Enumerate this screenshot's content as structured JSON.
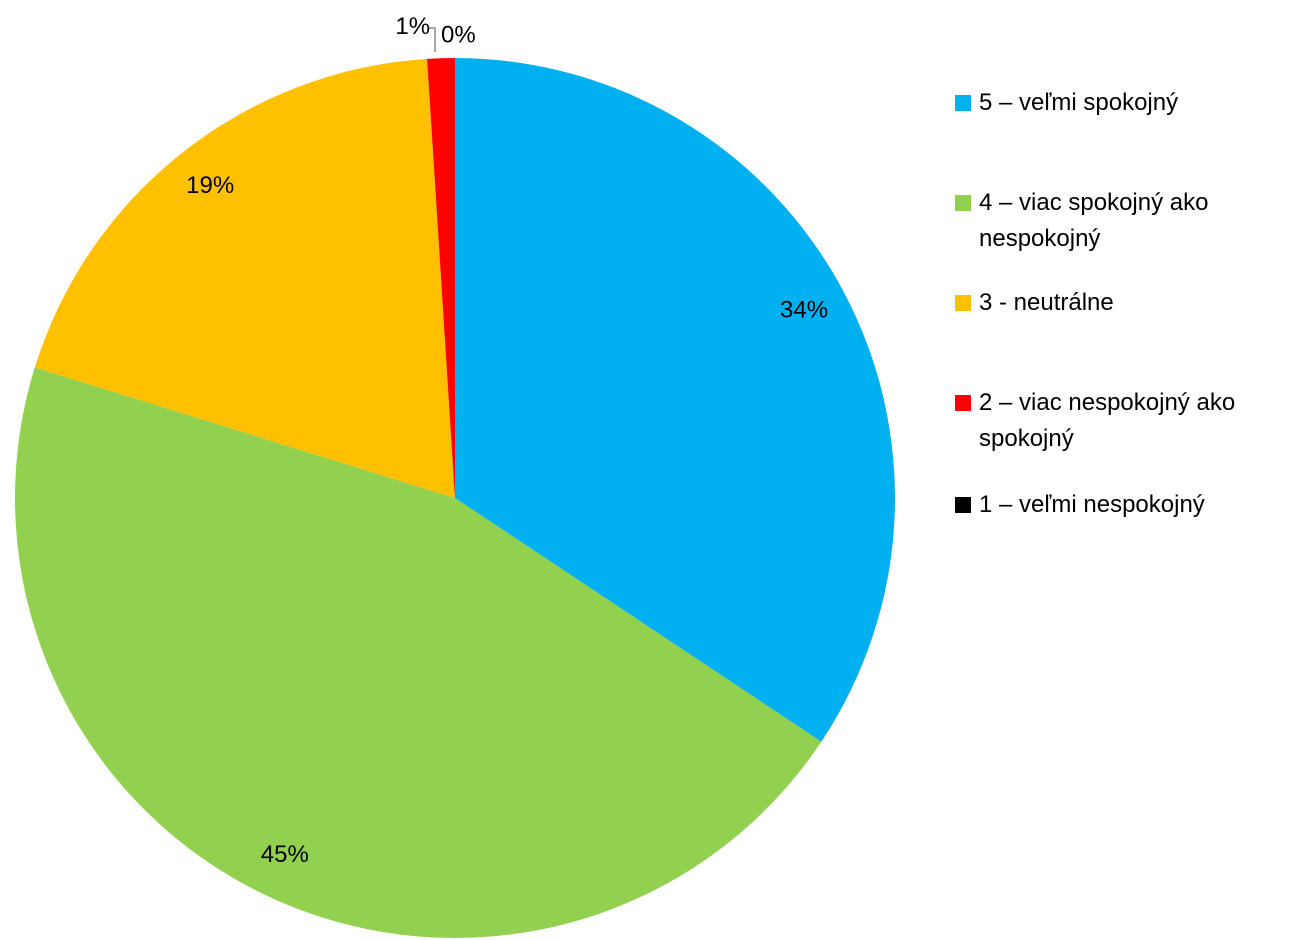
{
  "chart_data": {
    "type": "pie",
    "categories": [
      "5 – veľmi spokojný",
      "4 – viac spokojný ako nespokojný",
      "3 - neutrálne",
      "2 – viac nespokojný ako spokojný",
      "1 – veľmi nespokojný"
    ],
    "values": [
      34,
      45,
      19,
      1,
      0
    ],
    "value_labels": [
      "34%",
      "45%",
      "19%",
      "1%",
      "0%"
    ],
    "colors": [
      "#00b0f0",
      "#92d050",
      "#ffc000",
      "#ff0000",
      "#000000"
    ],
    "legend": "right"
  }
}
